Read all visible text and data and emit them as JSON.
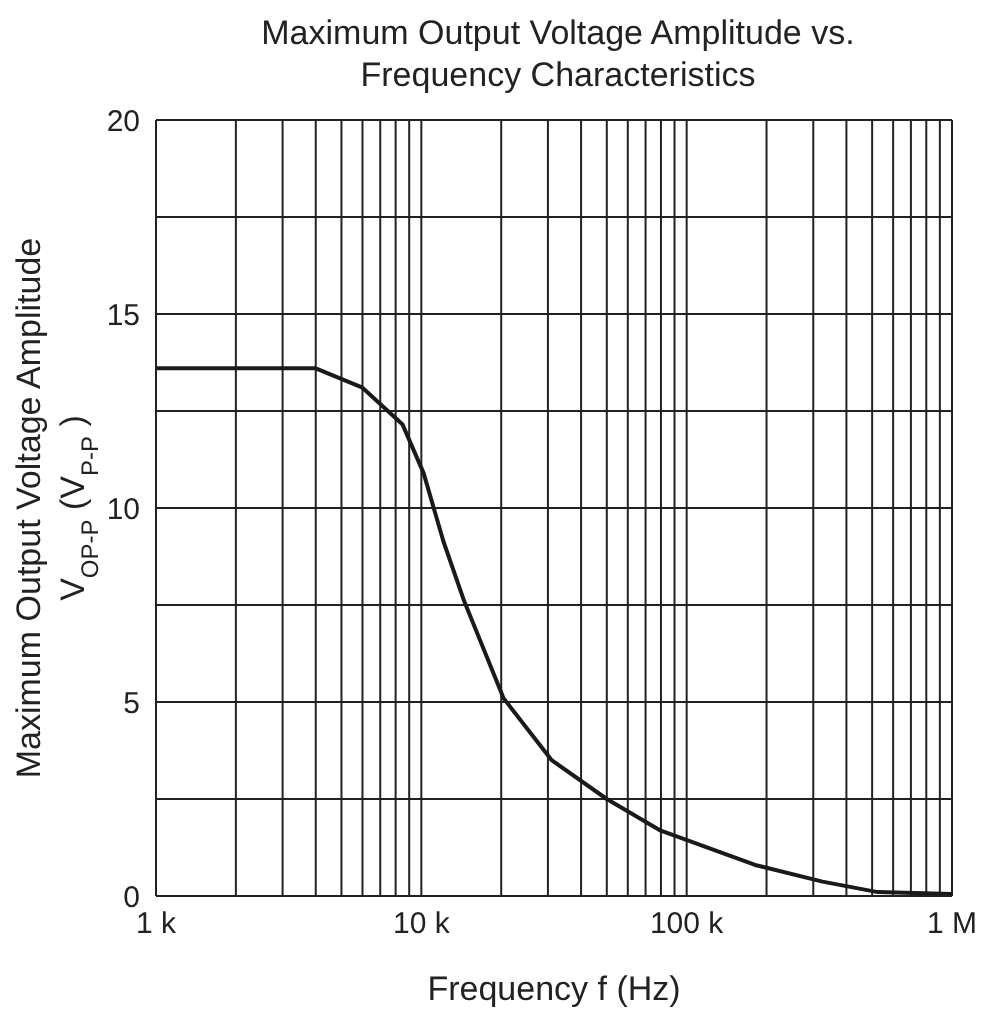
{
  "chart_data": {
    "type": "line",
    "title": "Maximum Output Voltage Amplitude vs.\nFrequency Characteristics",
    "xlabel": "Frequency f (Hz)",
    "ylabel": "Maximum Output Voltage Amplitude\nV$_{OP-P}$ (V$_{P-P}$)",
    "log": "x",
    "grid": true,
    "marker": "none",
    "line_style": "solid",
    "xlim": [
      1000,
      1000000
    ],
    "ylim": [
      0,
      20
    ],
    "xticks": [
      {
        "value": 1000,
        "label": "1 k"
      },
      {
        "value": 2000,
        "label": null
      },
      {
        "value": 3000,
        "label": null
      },
      {
        "value": 4000,
        "label": null
      },
      {
        "value": 5000,
        "label": null
      },
      {
        "value": 6000,
        "label": null
      },
      {
        "value": 7000,
        "label": null
      },
      {
        "value": 8000,
        "label": null
      },
      {
        "value": 9000,
        "label": null
      },
      {
        "value": 10000,
        "label": "10 k"
      },
      {
        "value": 20000,
        "label": null
      },
      {
        "value": 30000,
        "label": null
      },
      {
        "value": 40000,
        "label": null
      },
      {
        "value": 50000,
        "label": null
      },
      {
        "value": 60000,
        "label": null
      },
      {
        "value": 70000,
        "label": null
      },
      {
        "value": 80000,
        "label": null
      },
      {
        "value": 90000,
        "label": null
      },
      {
        "value": 100000,
        "label": "100 k"
      },
      {
        "value": 200000,
        "label": null
      },
      {
        "value": 300000,
        "label": null
      },
      {
        "value": 400000,
        "label": null
      },
      {
        "value": 500000,
        "label": null
      },
      {
        "value": 600000,
        "label": null
      },
      {
        "value": 700000,
        "label": null
      },
      {
        "value": 800000,
        "label": null
      },
      {
        "value": 900000,
        "label": null
      },
      {
        "value": 1000000,
        "label": "1 M"
      }
    ],
    "yticks": [
      0,
      {
        "value": 2.5,
        "label": null
      },
      5,
      {
        "value": 7.5,
        "label": null
      },
      10,
      {
        "value": 12.5,
        "label": null
      },
      15,
      {
        "value": 17.5,
        "label": null
      },
      20
    ],
    "series": [
      {
        "color": "#1a1a1a",
        "x": [
          1000,
          4000,
          6000,
          8500,
          10200,
          12100,
          14500,
          20400,
          31000,
          50000,
          79000,
          181000,
          325000,
          525000,
          1000000
        ],
        "values": [
          13.6,
          13.6,
          13.1,
          12.15,
          10.9,
          9.15,
          7.6,
          5.1,
          3.5,
          2.5,
          1.7,
          0.8,
          0.37,
          0.1,
          0.05
        ]
      }
    ]
  }
}
